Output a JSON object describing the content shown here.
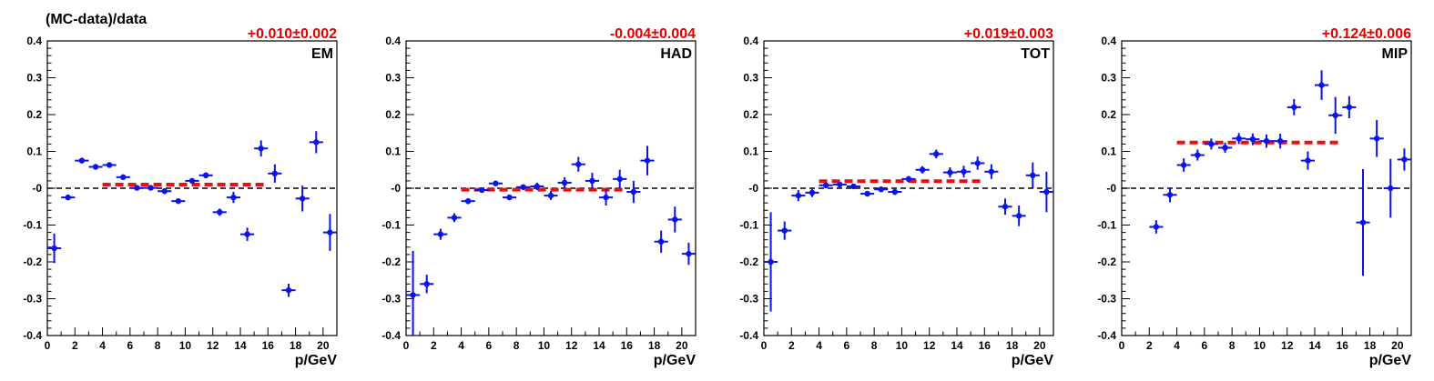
{
  "figure": {
    "ylabel": "(MC-data)/data",
    "xlabel": "p/GeV",
    "colors": {
      "points": "#0a14e6",
      "fit": "#e81010",
      "zero_line": "#000000",
      "fit_text": "#e00000"
    }
  },
  "chart_data": [
    {
      "type": "scatter",
      "panel_label": "EM",
      "fit_result": "+0.010±0.002",
      "xlabel": "p/GeV",
      "ylabel": "(MC-data)/data",
      "xlim": [
        0,
        21
      ],
      "ylim": [
        -0.4,
        0.4
      ],
      "x_ticks": [
        0,
        2,
        4,
        6,
        8,
        10,
        12,
        14,
        16,
        18,
        20
      ],
      "y_ticks": [
        -0.4,
        -0.3,
        -0.2,
        -0.1,
        0,
        0.1,
        0.2,
        0.3,
        0.4
      ],
      "y_tick_labels": [
        "-0.4",
        "-0.3",
        "-0.2",
        "-0.1",
        "-0",
        "0.1",
        "0.2",
        "0.3",
        "0.4"
      ],
      "fit_line": {
        "value": 0.01,
        "x_range": [
          4,
          16
        ]
      },
      "points": [
        {
          "x": 0.5,
          "y": -0.163,
          "err": 0.04
        },
        {
          "x": 1.5,
          "y": -0.025,
          "err": 0.006
        },
        {
          "x": 2.5,
          "y": 0.075,
          "err": 0.006
        },
        {
          "x": 3.5,
          "y": 0.058,
          "err": 0.006
        },
        {
          "x": 4.5,
          "y": 0.063,
          "err": 0.006
        },
        {
          "x": 5.5,
          "y": 0.03,
          "err": 0.006
        },
        {
          "x": 6.5,
          "y": 0.001,
          "err": 0.005
        },
        {
          "x": 7.5,
          "y": 0.001,
          "err": 0.005
        },
        {
          "x": 8.5,
          "y": -0.008,
          "err": 0.006
        },
        {
          "x": 9.5,
          "y": -0.035,
          "err": 0.006
        },
        {
          "x": 10.5,
          "y": 0.02,
          "err": 0.007
        },
        {
          "x": 11.5,
          "y": 0.035,
          "err": 0.008
        },
        {
          "x": 12.5,
          "y": -0.065,
          "err": 0.01
        },
        {
          "x": 13.5,
          "y": -0.025,
          "err": 0.015
        },
        {
          "x": 14.5,
          "y": -0.125,
          "err": 0.018
        },
        {
          "x": 15.5,
          "y": 0.108,
          "err": 0.022
        },
        {
          "x": 16.5,
          "y": 0.04,
          "err": 0.025
        },
        {
          "x": 17.5,
          "y": -0.277,
          "err": 0.018
        },
        {
          "x": 18.5,
          "y": -0.028,
          "err": 0.035
        },
        {
          "x": 19.5,
          "y": 0.125,
          "err": 0.03
        },
        {
          "x": 20.5,
          "y": -0.12,
          "err": 0.05
        }
      ]
    },
    {
      "type": "scatter",
      "panel_label": "HAD",
      "fit_result": "-0.004±0.004",
      "xlabel": "p/GeV",
      "ylabel": "",
      "xlim": [
        0,
        21
      ],
      "ylim": [
        -0.4,
        0.4
      ],
      "x_ticks": [
        0,
        2,
        4,
        6,
        8,
        10,
        12,
        14,
        16,
        18,
        20
      ],
      "y_ticks": [
        -0.4,
        -0.3,
        -0.2,
        -0.1,
        0,
        0.1,
        0.2,
        0.3,
        0.4
      ],
      "y_tick_labels": [
        "-0.4",
        "-0.3",
        "-0.2",
        "-0.1",
        "-0",
        "0.1",
        "0.2",
        "0.3",
        "0.4"
      ],
      "fit_line": {
        "value": -0.004,
        "x_range": [
          4,
          16
        ]
      },
      "points": [
        {
          "x": 0.5,
          "y": -0.29,
          "err": 0.12
        },
        {
          "x": 1.5,
          "y": -0.26,
          "err": 0.025
        },
        {
          "x": 2.5,
          "y": -0.125,
          "err": 0.015
        },
        {
          "x": 3.5,
          "y": -0.08,
          "err": 0.012
        },
        {
          "x": 4.5,
          "y": -0.035,
          "err": 0.008
        },
        {
          "x": 5.5,
          "y": -0.005,
          "err": 0.006
        },
        {
          "x": 6.5,
          "y": 0.013,
          "err": 0.006
        },
        {
          "x": 7.5,
          "y": -0.025,
          "err": 0.007
        },
        {
          "x": 8.5,
          "y": 0.003,
          "err": 0.008
        },
        {
          "x": 9.5,
          "y": 0.005,
          "err": 0.01
        },
        {
          "x": 10.5,
          "y": -0.02,
          "err": 0.012
        },
        {
          "x": 11.5,
          "y": 0.015,
          "err": 0.015
        },
        {
          "x": 12.5,
          "y": 0.065,
          "err": 0.02
        },
        {
          "x": 13.5,
          "y": 0.02,
          "err": 0.022
        },
        {
          "x": 14.5,
          "y": -0.025,
          "err": 0.022
        },
        {
          "x": 15.5,
          "y": 0.025,
          "err": 0.025
        },
        {
          "x": 16.5,
          "y": -0.01,
          "err": 0.03
        },
        {
          "x": 17.5,
          "y": 0.075,
          "err": 0.04
        },
        {
          "x": 18.5,
          "y": -0.145,
          "err": 0.03
        },
        {
          "x": 19.5,
          "y": -0.085,
          "err": 0.035
        },
        {
          "x": 20.5,
          "y": -0.178,
          "err": 0.03
        }
      ]
    },
    {
      "type": "scatter",
      "panel_label": "TOT",
      "fit_result": "+0.019±0.003",
      "xlabel": "p/GeV",
      "ylabel": "",
      "xlim": [
        0,
        21
      ],
      "ylim": [
        -0.4,
        0.4
      ],
      "x_ticks": [
        0,
        2,
        4,
        6,
        8,
        10,
        12,
        14,
        16,
        18,
        20
      ],
      "y_ticks": [
        -0.4,
        -0.3,
        -0.2,
        -0.1,
        0,
        0.1,
        0.2,
        0.3,
        0.4
      ],
      "y_tick_labels": [
        "-0.4",
        "-0.3",
        "-0.2",
        "-0.1",
        "-0",
        "0.1",
        "0.2",
        "0.3",
        "0.4"
      ],
      "fit_line": {
        "value": 0.019,
        "x_range": [
          4,
          16
        ]
      },
      "points": [
        {
          "x": 0.5,
          "y": -0.2,
          "err": 0.135
        },
        {
          "x": 1.5,
          "y": -0.115,
          "err": 0.025
        },
        {
          "x": 2.5,
          "y": -0.02,
          "err": 0.015
        },
        {
          "x": 3.5,
          "y": -0.012,
          "err": 0.012
        },
        {
          "x": 4.5,
          "y": 0.008,
          "err": 0.008
        },
        {
          "x": 5.5,
          "y": 0.01,
          "err": 0.006
        },
        {
          "x": 6.5,
          "y": 0.005,
          "err": 0.006
        },
        {
          "x": 7.5,
          "y": -0.015,
          "err": 0.006
        },
        {
          "x": 8.5,
          "y": -0.003,
          "err": 0.007
        },
        {
          "x": 9.5,
          "y": -0.01,
          "err": 0.008
        },
        {
          "x": 10.5,
          "y": 0.025,
          "err": 0.008
        },
        {
          "x": 11.5,
          "y": 0.05,
          "err": 0.01
        },
        {
          "x": 12.5,
          "y": 0.093,
          "err": 0.012
        },
        {
          "x": 13.5,
          "y": 0.043,
          "err": 0.014
        },
        {
          "x": 14.5,
          "y": 0.045,
          "err": 0.016
        },
        {
          "x": 15.5,
          "y": 0.068,
          "err": 0.018
        },
        {
          "x": 16.5,
          "y": 0.045,
          "err": 0.02
        },
        {
          "x": 17.5,
          "y": -0.05,
          "err": 0.022
        },
        {
          "x": 18.5,
          "y": -0.075,
          "err": 0.028
        },
        {
          "x": 19.5,
          "y": 0.035,
          "err": 0.035
        },
        {
          "x": 20.5,
          "y": -0.01,
          "err": 0.055
        }
      ]
    },
    {
      "type": "scatter",
      "panel_label": "MIP",
      "fit_result": "+0.124±0.006",
      "xlabel": "p/GeV",
      "ylabel": "",
      "xlim": [
        0,
        21
      ],
      "ylim": [
        -0.4,
        0.4
      ],
      "x_ticks": [
        0,
        2,
        4,
        6,
        8,
        10,
        12,
        14,
        16,
        18,
        20
      ],
      "y_ticks": [
        -0.4,
        -0.3,
        -0.2,
        -0.1,
        0,
        0.1,
        0.2,
        0.3,
        0.4
      ],
      "y_tick_labels": [
        "-0.4",
        "-0.3",
        "-0.2",
        "-0.1",
        "-0",
        "0.1",
        "0.2",
        "0.3",
        "0.4"
      ],
      "fit_line": {
        "value": 0.124,
        "x_range": [
          4,
          16
        ]
      },
      "points": [
        {
          "x": 2.5,
          "y": -0.105,
          "err": 0.018
        },
        {
          "x": 3.5,
          "y": -0.018,
          "err": 0.02
        },
        {
          "x": 4.5,
          "y": 0.063,
          "err": 0.018
        },
        {
          "x": 5.5,
          "y": 0.09,
          "err": 0.015
        },
        {
          "x": 6.5,
          "y": 0.12,
          "err": 0.015
        },
        {
          "x": 7.5,
          "y": 0.11,
          "err": 0.014
        },
        {
          "x": 8.5,
          "y": 0.135,
          "err": 0.015
        },
        {
          "x": 9.5,
          "y": 0.133,
          "err": 0.016
        },
        {
          "x": 10.5,
          "y": 0.128,
          "err": 0.018
        },
        {
          "x": 11.5,
          "y": 0.128,
          "err": 0.02
        },
        {
          "x": 12.5,
          "y": 0.22,
          "err": 0.022
        },
        {
          "x": 13.5,
          "y": 0.075,
          "err": 0.025
        },
        {
          "x": 14.5,
          "y": 0.28,
          "err": 0.04
        },
        {
          "x": 15.5,
          "y": 0.198,
          "err": 0.05
        },
        {
          "x": 16.5,
          "y": 0.22,
          "err": 0.03
        },
        {
          "x": 17.5,
          "y": -0.093,
          "err": 0.145
        },
        {
          "x": 18.5,
          "y": 0.135,
          "err": 0.05
        },
        {
          "x": 19.5,
          "y": 0.0,
          "err": 0.08
        },
        {
          "x": 20.5,
          "y": 0.078,
          "err": 0.03
        }
      ]
    }
  ]
}
